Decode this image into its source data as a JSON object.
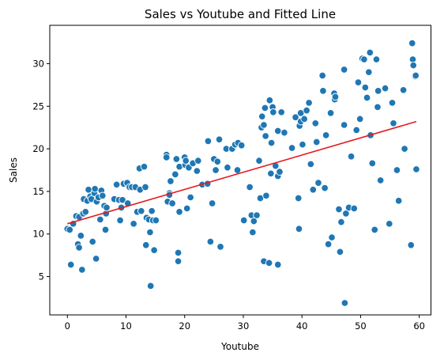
{
  "chart_data": {
    "type": "scatter",
    "title": "Sales vs Youtube and Fitted Line",
    "xlabel": "Youtube",
    "ylabel": "Sales",
    "xlim": [
      -3,
      62
    ],
    "ylim": [
      0.5,
      34.5
    ],
    "xticks": [
      0,
      10,
      20,
      30,
      40,
      50,
      60
    ],
    "yticks": [
      5,
      10,
      15,
      20,
      25,
      30
    ],
    "grid": false,
    "colors": {
      "points": "#1f77b4",
      "fit_line": "#e41a1c"
    },
    "fitted_line": {
      "x": [
        0,
        59.5
      ],
      "y": [
        11.2,
        23.2
      ]
    },
    "points": [
      [
        0,
        10.6
      ],
      [
        0.4,
        10.5
      ],
      [
        0.6,
        6.4
      ],
      [
        1,
        11.2
      ],
      [
        1.5,
        12.1
      ],
      [
        1.8,
        8.8
      ],
      [
        2,
        8.4
      ],
      [
        2,
        12
      ],
      [
        2.3,
        9.8
      ],
      [
        2.5,
        5.8
      ],
      [
        2.7,
        12.4
      ],
      [
        2.8,
        14.1
      ],
      [
        3.1,
        12.6
      ],
      [
        3.4,
        13.9
      ],
      [
        3.6,
        15.2
      ],
      [
        3.9,
        14.4
      ],
      [
        4.1,
        14.1
      ],
      [
        4.3,
        9.1
      ],
      [
        4.6,
        14.8
      ],
      [
        4.7,
        15.3
      ],
      [
        4.9,
        7.1
      ],
      [
        5,
        13.8
      ],
      [
        5.3,
        14.3
      ],
      [
        5.6,
        11.7
      ],
      [
        5.8,
        15.1
      ],
      [
        6,
        14.5
      ],
      [
        6.3,
        13.3
      ],
      [
        6.5,
        10.5
      ],
      [
        6.6,
        12.4
      ],
      [
        6.7,
        13.1
      ],
      [
        8,
        14.1
      ],
      [
        8.4,
        15.8
      ],
      [
        8.8,
        14
      ],
      [
        9,
        11.6
      ],
      [
        9.2,
        13.1
      ],
      [
        9.4,
        14
      ],
      [
        9.6,
        15.9
      ],
      [
        10.2,
        16
      ],
      [
        10.3,
        13.6
      ],
      [
        10.6,
        15.5
      ],
      [
        11,
        15.5
      ],
      [
        11.3,
        11.2
      ],
      [
        11.6,
        15.5
      ],
      [
        11.9,
        12.6
      ],
      [
        12.3,
        17.7
      ],
      [
        12.4,
        15.2
      ],
      [
        12.6,
        12.7
      ],
      [
        13.1,
        17.9
      ],
      [
        13.3,
        15.5
      ],
      [
        13.5,
        11.9
      ],
      [
        13.4,
        8.7
      ],
      [
        13.9,
        11.7
      ],
      [
        14.1,
        10.2
      ],
      [
        14.2,
        3.9
      ],
      [
        14.4,
        12.7
      ],
      [
        14.6,
        11.6
      ],
      [
        14.8,
        8.1
      ],
      [
        15.1,
        11.6
      ],
      [
        16.9,
        19.3
      ],
      [
        16.9,
        19
      ],
      [
        17.1,
        13.8
      ],
      [
        17.4,
        14.8
      ],
      [
        17.4,
        14.6
      ],
      [
        17.6,
        16.2
      ],
      [
        17.9,
        13.6
      ],
      [
        18.4,
        17
      ],
      [
        18.6,
        18.8
      ],
      [
        18.9,
        7.8
      ],
      [
        18.9,
        6.8
      ],
      [
        19.1,
        12.6
      ],
      [
        19.1,
        17.9
      ],
      [
        20,
        19
      ],
      [
        20.1,
        18.1
      ],
      [
        20.2,
        18.6
      ],
      [
        20.4,
        13
      ],
      [
        20.7,
        17.8
      ],
      [
        21,
        14.3
      ],
      [
        21.4,
        18.3
      ],
      [
        22.1,
        17.4
      ],
      [
        22.3,
        18.6
      ],
      [
        23,
        15.8
      ],
      [
        23.9,
        15.9
      ],
      [
        24,
        20.9
      ],
      [
        24.4,
        9.1
      ],
      [
        24.6,
        13.6
      ],
      [
        24.7,
        13.6
      ],
      [
        25,
        18.8
      ],
      [
        25.3,
        17.5
      ],
      [
        25.6,
        18.5
      ],
      [
        25.9,
        21.1
      ],
      [
        26.1,
        8.5
      ],
      [
        27.1,
        20
      ],
      [
        27.3,
        17.8
      ],
      [
        28.1,
        20
      ],
      [
        28.6,
        20.5
      ],
      [
        29,
        17.5
      ],
      [
        29.1,
        20.7
      ],
      [
        29.7,
        20.4
      ],
      [
        30.1,
        11.6
      ],
      [
        31.1,
        15.5
      ],
      [
        31.4,
        12.2
      ],
      [
        31.6,
        10.2
      ],
      [
        31.8,
        11.5
      ],
      [
        32.3,
        12.2
      ],
      [
        32.7,
        18.6
      ],
      [
        32.9,
        14.2
      ],
      [
        33.1,
        22.5
      ],
      [
        33.2,
        23.8
      ],
      [
        33.5,
        22.8
      ],
      [
        33.5,
        6.8
      ],
      [
        33.7,
        24.8
      ],
      [
        33.8,
        21.5
      ],
      [
        33.9,
        14.5
      ],
      [
        34.4,
        6.6
      ],
      [
        34.5,
        25.7
      ],
      [
        34.7,
        17.1
      ],
      [
        34.8,
        20.7
      ],
      [
        35,
        24.9
      ],
      [
        35.1,
        24.3
      ],
      [
        35.5,
        18
      ],
      [
        35.9,
        22.1
      ],
      [
        35.9,
        16.8
      ],
      [
        35.9,
        6.4
      ],
      [
        36.2,
        17.3
      ],
      [
        36.5,
        24.3
      ],
      [
        37,
        21.9
      ],
      [
        38.3,
        20.1
      ],
      [
        38.9,
        23.7
      ],
      [
        39.4,
        14.2
      ],
      [
        39.5,
        10.6
      ],
      [
        39.6,
        22.7
      ],
      [
        39.8,
        23.2
      ],
      [
        39.8,
        24.2
      ],
      [
        40.1,
        20.5
      ],
      [
        40.4,
        23.5
      ],
      [
        40.8,
        24.5
      ],
      [
        41.2,
        25.4
      ],
      [
        41.5,
        18.2
      ],
      [
        41.9,
        15.2
      ],
      [
        42.3,
        23
      ],
      [
        42.5,
        20.8
      ],
      [
        42.8,
        16
      ],
      [
        43.5,
        28.6
      ],
      [
        43.6,
        26.8
      ],
      [
        43.9,
        15.4
      ],
      [
        44.1,
        21.6
      ],
      [
        44.5,
        8.8
      ],
      [
        44.9,
        24.2
      ],
      [
        45.1,
        9.6
      ],
      [
        45.5,
        26.5
      ],
      [
        45.6,
        25.8
      ],
      [
        45.7,
        26.1
      ],
      [
        46.3,
        12.9
      ],
      [
        46.5,
        7.9
      ],
      [
        46.7,
        11.4
      ],
      [
        47.2,
        22.8
      ],
      [
        47.2,
        29.3
      ],
      [
        47.3,
        1.9
      ],
      [
        47.5,
        12.4
      ],
      [
        48,
        13.1
      ],
      [
        48.4,
        19.1
      ],
      [
        48.9,
        13
      ],
      [
        49.3,
        22.2
      ],
      [
        49.6,
        27.8
      ],
      [
        49.9,
        23.5
      ],
      [
        50.3,
        30.6
      ],
      [
        50.6,
        30.5
      ],
      [
        50.8,
        27.2
      ],
      [
        51.1,
        26
      ],
      [
        51.4,
        29
      ],
      [
        51.6,
        31.3
      ],
      [
        51.7,
        21.6
      ],
      [
        52,
        18.3
      ],
      [
        52.4,
        10.5
      ],
      [
        52.7,
        30.5
      ],
      [
        52.9,
        24.9
      ],
      [
        53,
        26.8
      ],
      [
        53.4,
        16.3
      ],
      [
        54.2,
        27.1
      ],
      [
        54.9,
        11.2
      ],
      [
        55.4,
        25.4
      ],
      [
        55.6,
        23
      ],
      [
        56.2,
        17.5
      ],
      [
        56.5,
        13.9
      ],
      [
        57.3,
        26.9
      ],
      [
        57.5,
        20
      ],
      [
        58.6,
        8.7
      ],
      [
        58.8,
        32.4
      ],
      [
        58.9,
        30.5
      ],
      [
        59,
        29.8
      ],
      [
        59.3,
        28.5
      ],
      [
        59.4,
        28.6
      ],
      [
        59.5,
        17.6
      ]
    ]
  }
}
